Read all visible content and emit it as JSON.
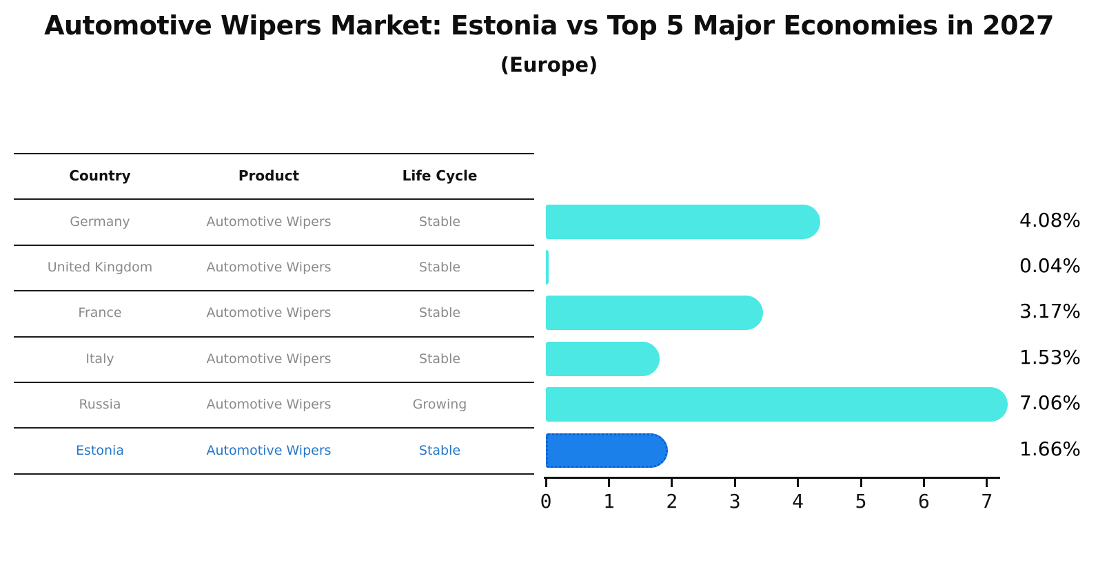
{
  "title": "Automotive Wipers Market: Estonia vs Top 5 Major Economies in 2027",
  "subtitle": "(Europe)",
  "table": {
    "headers": [
      "Country",
      "Product",
      "Life Cycle"
    ],
    "rows": [
      {
        "country": "Germany",
        "product": "Automotive Wipers",
        "life_cycle": "Stable",
        "highlight": false
      },
      {
        "country": "United Kingdom",
        "product": "Automotive Wipers",
        "life_cycle": "Stable",
        "highlight": false
      },
      {
        "country": "France",
        "product": "Automotive Wipers",
        "life_cycle": "Stable",
        "highlight": false
      },
      {
        "country": "Italy",
        "product": "Automotive Wipers",
        "life_cycle": "Stable",
        "highlight": false
      },
      {
        "country": "Russia",
        "product": "Automotive Wipers",
        "life_cycle": "Growing",
        "highlight": false
      },
      {
        "country": "Estonia",
        "product": "Automotive Wipers",
        "life_cycle": "Stable",
        "highlight": true
      }
    ]
  },
  "chart_data": {
    "type": "bar",
    "orientation": "horizontal",
    "categories": [
      "Germany",
      "United Kingdom",
      "France",
      "Italy",
      "Russia",
      "Estonia"
    ],
    "values": [
      4.08,
      0.04,
      3.17,
      1.53,
      7.06,
      1.66
    ],
    "value_labels": [
      "4.08%",
      "0.04%",
      "3.17%",
      "1.53%",
      "7.06%",
      "1.66%"
    ],
    "xticks": [
      0,
      1,
      2,
      3,
      4,
      5,
      6,
      7
    ],
    "xlim": [
      0,
      7.2
    ],
    "grid": false,
    "legend": false,
    "bar_color": "#4be8e4",
    "highlight_color": "#1c80eb",
    "highlight_border_color": "#0e5ed6",
    "highlight_index": 5
  },
  "colors": {
    "title_text": "#0e0e0e",
    "table_text": "#8a8a8a",
    "highlight_text": "#2577c9",
    "axis": "#111111"
  }
}
